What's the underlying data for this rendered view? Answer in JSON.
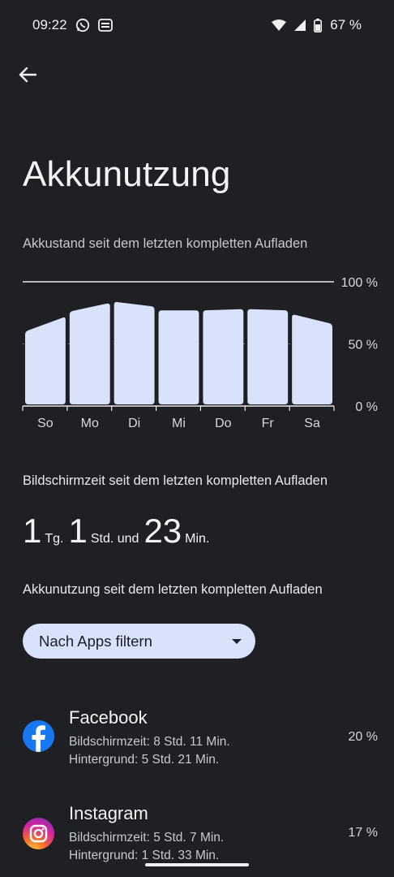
{
  "status_bar": {
    "time": "09:22",
    "battery_text": "67 %",
    "icons": [
      "whatsapp-icon",
      "card-icon",
      "wifi-icon",
      "signal-icon",
      "battery-icon"
    ]
  },
  "header": {
    "back_icon": "arrow-left-icon"
  },
  "page_title": "Akkunutzung",
  "chart_caption": "Akkustand seit dem letzten kompletten Aufladen",
  "chart_data": {
    "type": "area",
    "categories": [
      "So",
      "Mo",
      "Di",
      "Mi",
      "Do",
      "Fr",
      "Sa"
    ],
    "series": [
      {
        "values": [
          [
            60,
            72
          ],
          [
            76,
            83
          ],
          [
            84,
            80
          ],
          [
            77,
            77
          ],
          [
            77,
            78
          ],
          [
            78,
            77
          ],
          [
            74,
            66
          ]
        ]
      }
    ],
    "yticks": [
      "100 %",
      "50 %",
      "0 %"
    ],
    "ylim": [
      0,
      100
    ],
    "colors": {
      "fill": "#d9e2fb",
      "grid": "#e8e8ec"
    }
  },
  "screen_time": {
    "title": "Bildschirmzeit seit dem letzten kompletten Aufladen",
    "days_value": "1",
    "days_unit": "Tg.",
    "hours_value": "1",
    "hours_unit": "Std. und",
    "minutes_value": "23",
    "minutes_unit": "Min."
  },
  "usage_title": "Akkunutzung seit dem letzten kompletten Aufladen",
  "filter": {
    "label": "Nach Apps filtern",
    "icon": "dropdown-arrow-icon"
  },
  "apps": [
    {
      "name": "Facebook",
      "screen_time": "Bildschirmzeit: 8 Std. 11 Min.",
      "background": "Hintergrund: 5 Std. 21 Min.",
      "percent": "20 %",
      "icon": "facebook-icon"
    },
    {
      "name": "Instagram",
      "screen_time": "Bildschirmzeit: 5 Std. 7 Min.",
      "background": "Hintergrund: 1 Std. 33 Min.",
      "percent": "17 %",
      "icon": "instagram-icon"
    }
  ]
}
